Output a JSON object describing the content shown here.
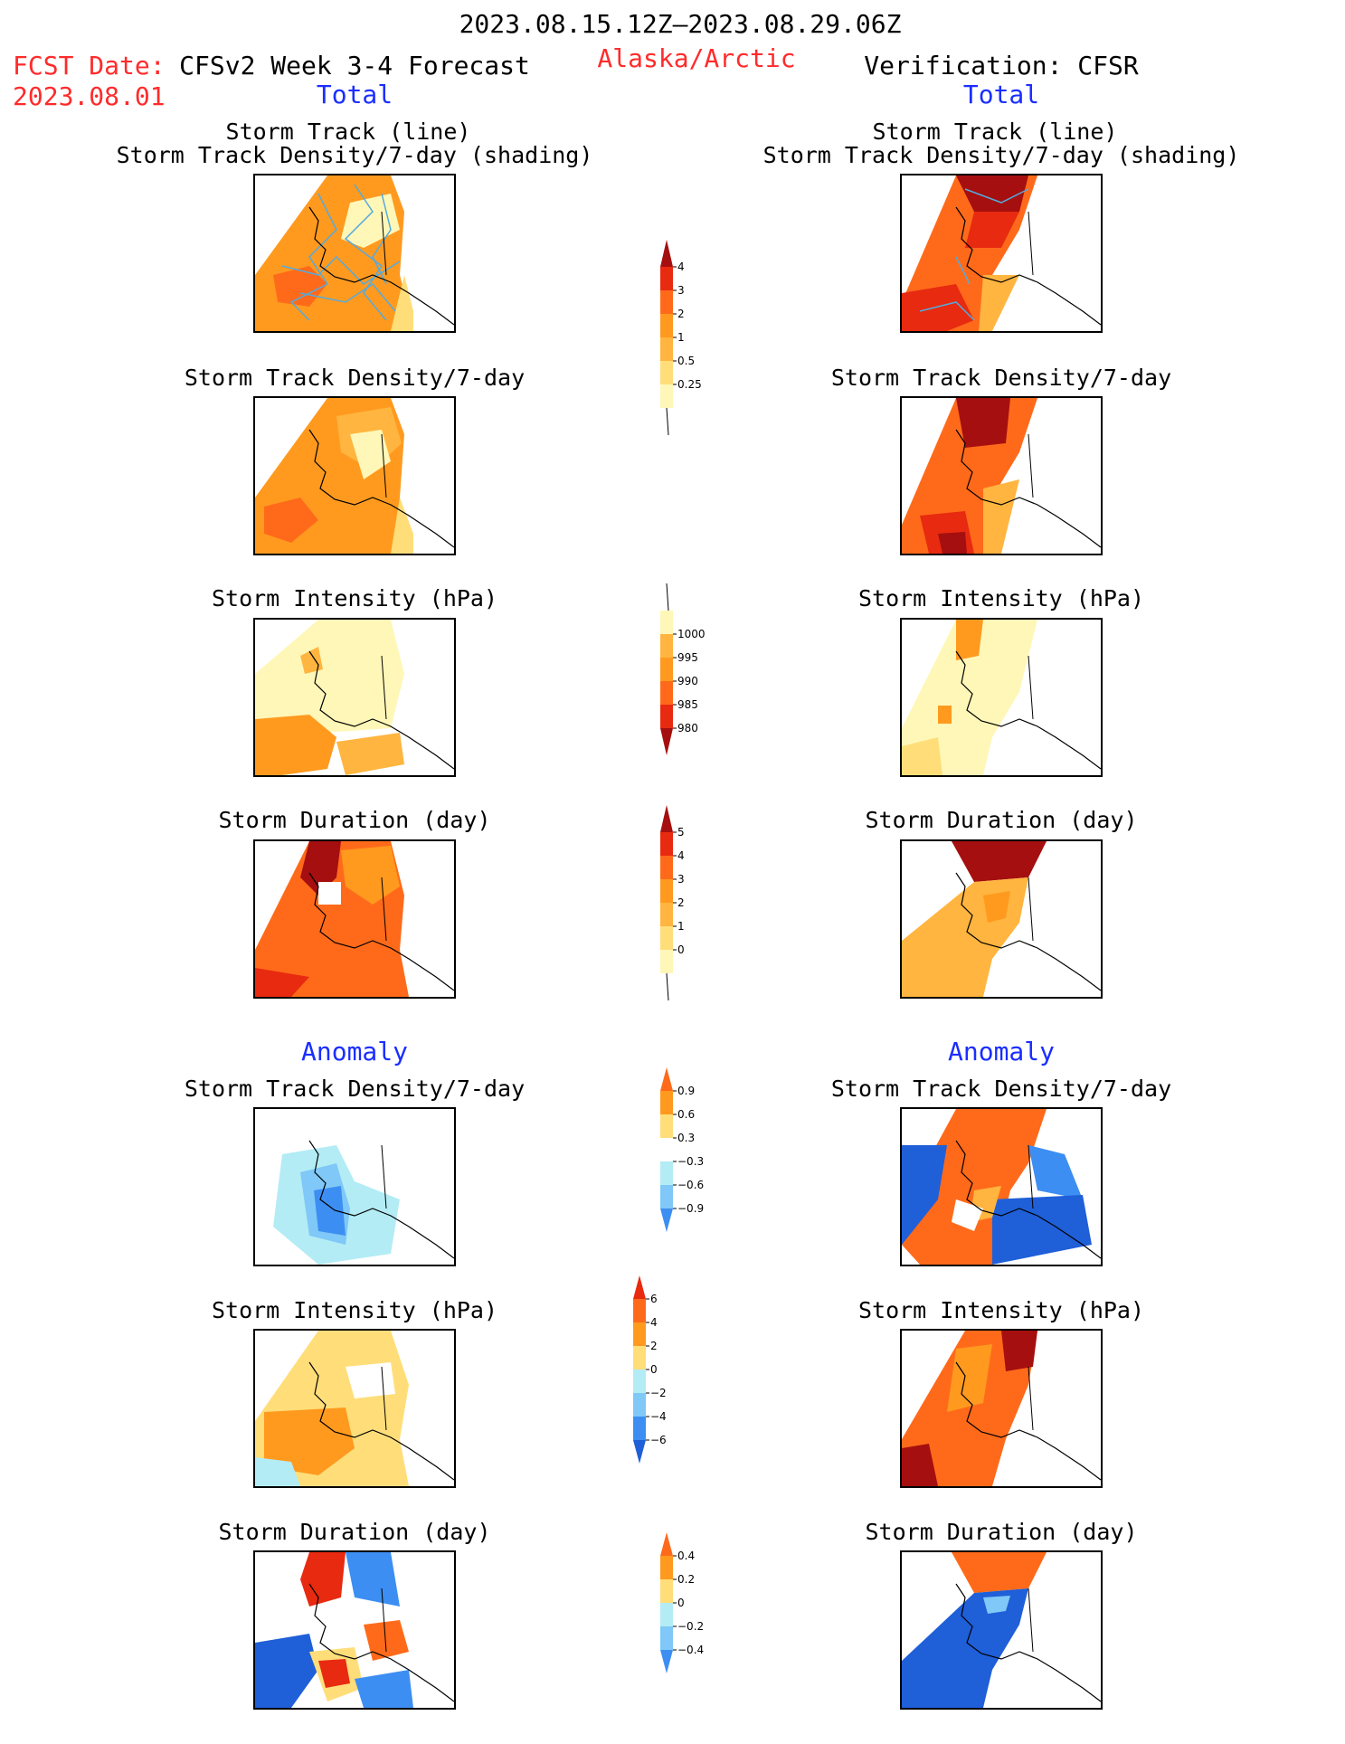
{
  "header": {
    "period": "2023.08.15.12Z–2023.08.29.06Z",
    "fcst_label": "FCST Date:",
    "fcst_date": "2023.08.01",
    "model": "CFSv2 Week 3-4 Forecast",
    "region": "Alaska/Arctic",
    "verification": "Verification: CFSR",
    "total_left": "Total",
    "total_right": "Total",
    "anomaly_left": "Anomaly",
    "anomaly_right": "Anomaly"
  },
  "panel_titles": {
    "track_line": "Storm Track (line)",
    "track_shading": "Storm Track Density/7-day (shading)",
    "density": "Storm Track Density/7-day",
    "intensity": "Storm Intensity (hPa)",
    "duration": "Storm Duration (day)"
  },
  "colors": {
    "c_lightyellow": "#fff7b8",
    "c_yellow": "#ffde7a",
    "c_gold": "#ffb53f",
    "c_orange": "#ff9a1f",
    "c_orangered": "#ff6a1a",
    "c_red": "#e82a10",
    "c_darkred": "#a50f0f",
    "c_darkestred": "#960808",
    "c_lightblue": "#b3ecf5",
    "c_midblue": "#7fc8f7",
    "c_blue": "#3d8ef2",
    "c_darkblue": "#1f5fd8",
    "c_track": "#55aadd"
  },
  "chart_data": [
    {
      "type": "heatmap",
      "name": "colorbar-density",
      "levels": [
        "0.25",
        "0.5",
        "1",
        "2",
        "3",
        "4"
      ],
      "colors": [
        "#fff7b8",
        "#ffde7a",
        "#ffb53f",
        "#ff9a1f",
        "#ff6a1a",
        "#e82a10",
        "#a50f0f"
      ],
      "direction": "up"
    },
    {
      "type": "heatmap",
      "name": "colorbar-intensity",
      "levels": [
        "1000",
        "995",
        "990",
        "985",
        "980"
      ],
      "colors": [
        "#fff7b8",
        "#ffb53f",
        "#ff9a1f",
        "#ff6a1a",
        "#e82a10",
        "#a50f0f"
      ],
      "direction": "down"
    },
    {
      "type": "heatmap",
      "name": "colorbar-duration",
      "levels": [
        "0",
        "1",
        "2",
        "3",
        "4",
        "5"
      ],
      "colors": [
        "#fff7b8",
        "#ffde7a",
        "#ffb53f",
        "#ff9a1f",
        "#ff6a1a",
        "#e82a10",
        "#a50f0f"
      ],
      "direction": "up"
    },
    {
      "type": "heatmap",
      "name": "colorbar-anom-density",
      "levels": [
        "0.9",
        "0.6",
        "0.3",
        "−0.3",
        "−0.6",
        "−0.9"
      ],
      "colors": [
        "#ff6a1a",
        "#ff9a1f",
        "#ffde7a",
        "#ffffff",
        "#b3ecf5",
        "#7fc8f7",
        "#3d8ef2"
      ],
      "direction": "both"
    },
    {
      "type": "heatmap",
      "name": "colorbar-anom-intensity",
      "levels": [
        "6",
        "4",
        "2",
        "0",
        "−2",
        "−4",
        "−6"
      ],
      "colors": [
        "#e82a10",
        "#ff6a1a",
        "#ff9a1f",
        "#ffde7a",
        "#b3ecf5",
        "#7fc8f7",
        "#3d8ef2",
        "#1f5fd8"
      ],
      "direction": "both"
    },
    {
      "type": "heatmap",
      "name": "colorbar-anom-duration",
      "levels": [
        "0.4",
        "0.2",
        "0",
        "−0.2",
        "−0.4"
      ],
      "colors": [
        "#ff6a1a",
        "#ff9a1f",
        "#ffde7a",
        "#b3ecf5",
        "#7fc8f7",
        "#3d8ef2"
      ],
      "direction": "both"
    }
  ]
}
